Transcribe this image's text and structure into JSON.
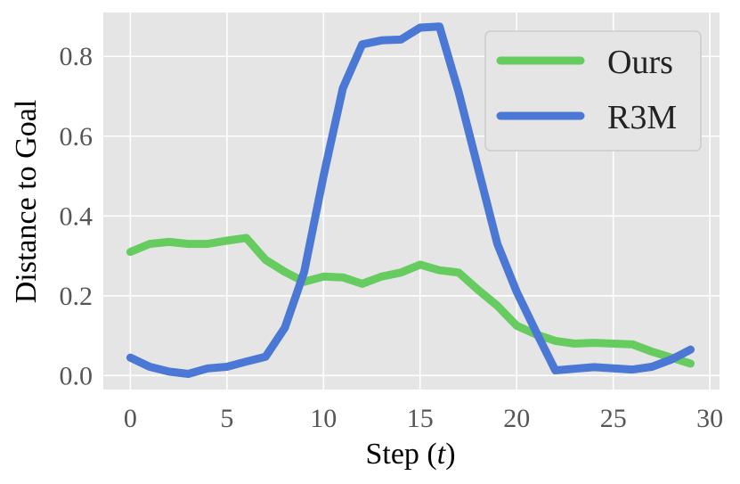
{
  "chart_data": {
    "type": "line",
    "title": "",
    "xlabel_prefix": "Step (",
    "xlabel_var": "t",
    "xlabel_suffix": ")",
    "ylabel": "Distance to Goal",
    "xlim": [
      -1.4,
      30.5
    ],
    "ylim": [
      -0.035,
      0.91
    ],
    "xticks": [
      0,
      5,
      10,
      15,
      20,
      25,
      30
    ],
    "yticks": [
      0.0,
      0.2,
      0.4,
      0.6,
      0.8
    ],
    "ytick_labels": [
      "0.0",
      "0.2",
      "0.4",
      "0.6",
      "0.8"
    ],
    "grid": true,
    "legend_position": "top-right",
    "background_color": "#e5e5e5",
    "x": [
      0,
      1,
      2,
      3,
      4,
      5,
      6,
      7,
      8,
      9,
      10,
      11,
      12,
      13,
      14,
      15,
      16,
      17,
      18,
      19,
      20,
      21,
      22,
      23,
      24,
      25,
      26,
      27,
      28,
      29
    ],
    "series": [
      {
        "name": "Ours",
        "color": "#66cc5f",
        "values": [
          0.31,
          0.33,
          0.335,
          0.33,
          0.33,
          0.338,
          0.345,
          0.29,
          0.26,
          0.235,
          0.248,
          0.246,
          0.23,
          0.248,
          0.258,
          0.278,
          0.264,
          0.258,
          0.215,
          0.175,
          0.125,
          0.103,
          0.087,
          0.08,
          0.082,
          0.08,
          0.078,
          0.06,
          0.045,
          0.03
        ]
      },
      {
        "name": "R3M",
        "color": "#4a78d4",
        "values": [
          0.045,
          0.022,
          0.01,
          0.004,
          0.018,
          0.022,
          0.035,
          0.047,
          0.12,
          0.26,
          0.5,
          0.72,
          0.83,
          0.84,
          0.842,
          0.872,
          0.875,
          0.71,
          0.52,
          0.33,
          0.21,
          0.11,
          0.013,
          0.017,
          0.021,
          0.018,
          0.015,
          0.022,
          0.04,
          0.065
        ]
      }
    ]
  }
}
